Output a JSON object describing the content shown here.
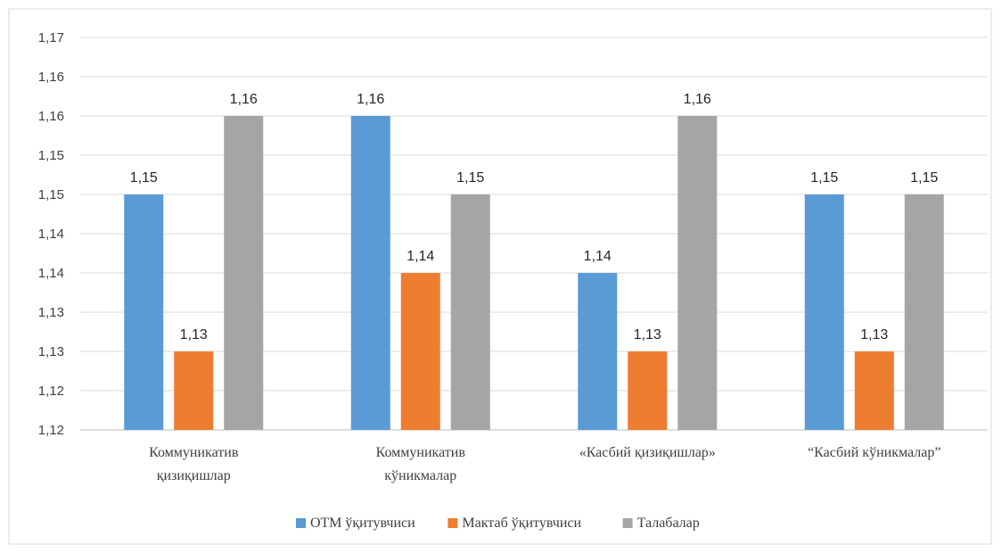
{
  "chart_data": {
    "type": "bar",
    "title": "",
    "xlabel": "",
    "ylabel": "",
    "categories": [
      [
        "Коммуникатив",
        "қизиқишлар"
      ],
      [
        "Коммуникатив",
        "кўникмалар"
      ],
      [
        "«Касбий қизиқишлар»"
      ],
      [
        "“Касбий кўникмалар”"
      ]
    ],
    "series": [
      {
        "name": "ОТМ ўқитувчиси",
        "color": "#5b9bd5",
        "values": [
          1.15,
          1.16,
          1.14,
          1.15
        ],
        "labels": [
          "1,15",
          "1,16",
          "1,14",
          "1,15"
        ]
      },
      {
        "name": "Мактаб ўқитувчиси",
        "color": "#ed7d31",
        "values": [
          1.13,
          1.14,
          1.13,
          1.13
        ],
        "labels": [
          "1,13",
          "1,14",
          "1,13",
          "1,13"
        ]
      },
      {
        "name": "Талабалар",
        "color": "#a5a5a5",
        "values": [
          1.16,
          1.15,
          1.16,
          1.15
        ],
        "labels": [
          "1,16",
          "1,15",
          "1,16",
          "1,15"
        ]
      }
    ],
    "yticks": [
      "1,12",
      "1,12",
      "1,13",
      "1,13",
      "1,14",
      "1,14",
      "1,15",
      "1,15",
      "1,16",
      "1,16",
      "1,17"
    ],
    "ylim": [
      1.12,
      1.17
    ],
    "grid": true,
    "legend_position": "bottom"
  }
}
